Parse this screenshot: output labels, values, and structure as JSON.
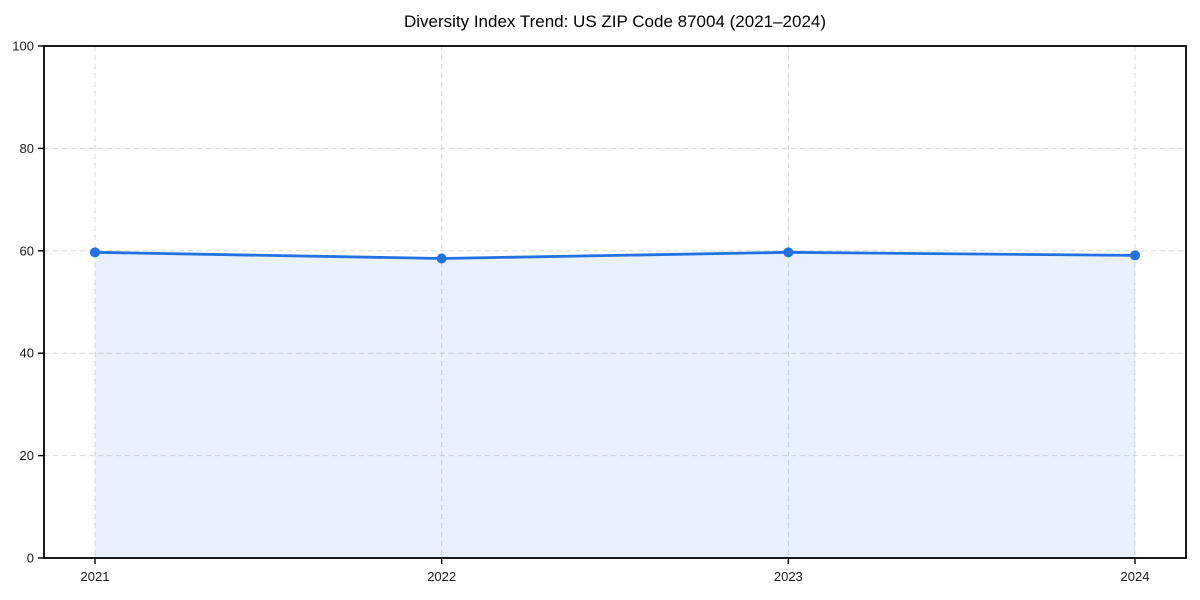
{
  "chart_data": {
    "type": "area",
    "title": "Diversity Index Trend: US ZIP Code 87004 (2021–2024)",
    "categories": [
      "2021",
      "2022",
      "2023",
      "2024"
    ],
    "values": [
      59.7,
      58.5,
      59.7,
      59.1
    ],
    "series_name": "Diversity Index",
    "xlabel": "",
    "ylabel": "",
    "ylim": [
      0,
      100
    ],
    "yticks": [
      0,
      20,
      40,
      60,
      80,
      100
    ],
    "grid": true,
    "grid_style": "dashed",
    "legend": false,
    "colors": {
      "line": "#2272e2",
      "marker": "#2272e2",
      "fill": "#2272e2",
      "fill_opacity": 0.1,
      "grid": "#d8d8d8",
      "axis": "#000000",
      "tick_label": "#1a1a1a",
      "title": "#000000",
      "background": "#ffffff"
    }
  }
}
